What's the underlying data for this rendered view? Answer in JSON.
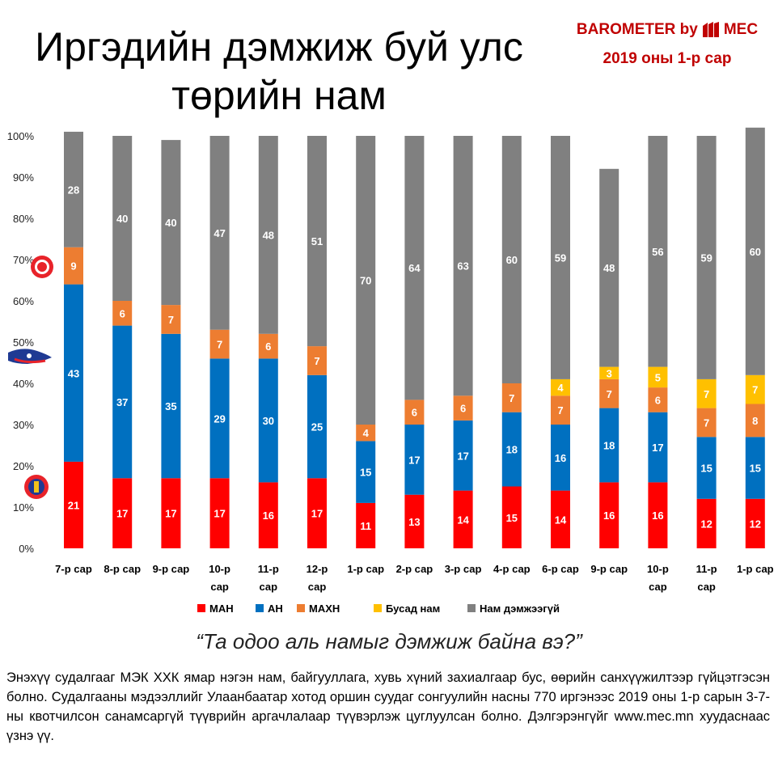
{
  "header": {
    "title_line1": "Иргэдийн дэмжиж буй улс",
    "title_line2": "төрийн нам",
    "brand_prefix": "BAROMETER by",
    "brand_suffix": "MEC",
    "period": "2019 оны 1-р сар"
  },
  "footer": {
    "question": "“Та одоо аль намыг дэмжиж байна вэ?”",
    "description": "Энэхүү судалгааг МЭК ХХК ямар нэгэн нам, байгууллага, хувь хүний захиалгаар бус, өөрийн санхүүжилтээр гүйцэтгэсэн болно. Судалгааны мэдээллийг Улаанбаатар хотод оршин суудаг сонгуулийн насны 770 иргэнээс 2019 оны 1-р сарын 3-7-ны квотчилсон санамсаргүй түүврийн аргачлалаар түүвэрлэж цуглуулсан болно. Дэлгэрэнгүйг www.mec.mn хуудаснаас үзнэ үү."
  },
  "colors": {
    "brand": "#c00000",
    "MAN": "#ff0000",
    "AN": "#0070c0",
    "MAHN": "#ed7d31",
    "other": "#ffc000",
    "none": "#808080"
  },
  "icons": [
    "man-party-icon",
    "an-party-icon",
    "mahn-party-icon",
    "mec-logo-icon"
  ],
  "chart_data": {
    "type": "bar",
    "stacked": true,
    "categories": [
      [
        "7-р сар"
      ],
      [
        "8-р сар"
      ],
      [
        "9-р сар"
      ],
      [
        "10-р",
        "сар"
      ],
      [
        "11-р",
        "сар"
      ],
      [
        "12-р",
        "сар"
      ],
      [
        "1-р сар"
      ],
      [
        "2-р сар"
      ],
      [
        "3-р сар"
      ],
      [
        "4-р сар"
      ],
      [
        "6-р сар"
      ],
      [
        "9-р сар"
      ],
      [
        "10-р",
        "сар"
      ],
      [
        "11-р",
        "сар"
      ],
      [
        "1-р сар"
      ]
    ],
    "y_ticks": [
      "0%",
      "10%",
      "20%",
      "30%",
      "40%",
      "50%",
      "60%",
      "70%",
      "80%",
      "90%",
      "100%"
    ],
    "ylim": [
      0,
      100
    ],
    "series": [
      {
        "name": "МАН",
        "color": "#ff0000",
        "values": [
          21,
          17,
          17,
          17,
          16,
          17,
          11,
          13,
          14,
          15,
          14,
          16,
          16,
          12,
          12
        ]
      },
      {
        "name": "АН",
        "color": "#0070c0",
        "values": [
          43,
          37,
          35,
          29,
          30,
          25,
          15,
          17,
          17,
          18,
          16,
          18,
          17,
          15,
          15
        ]
      },
      {
        "name": "МАХН",
        "color": "#ed7d31",
        "values": [
          9,
          6,
          7,
          7,
          6,
          7,
          4,
          6,
          6,
          7,
          7,
          7,
          6,
          7,
          8
        ]
      },
      {
        "name": "Бусад нам",
        "color": "#ffc000",
        "values": [
          0,
          0,
          0,
          0,
          0,
          0,
          0,
          0,
          0,
          0,
          4,
          3,
          5,
          7,
          7
        ]
      },
      {
        "name": "Нам дэмжээгүй",
        "color": "#808080",
        "values": [
          28,
          40,
          40,
          47,
          48,
          51,
          70,
          64,
          63,
          60,
          59,
          48,
          56,
          59,
          60
        ]
      }
    ],
    "grid": false,
    "legend": "bottom"
  }
}
